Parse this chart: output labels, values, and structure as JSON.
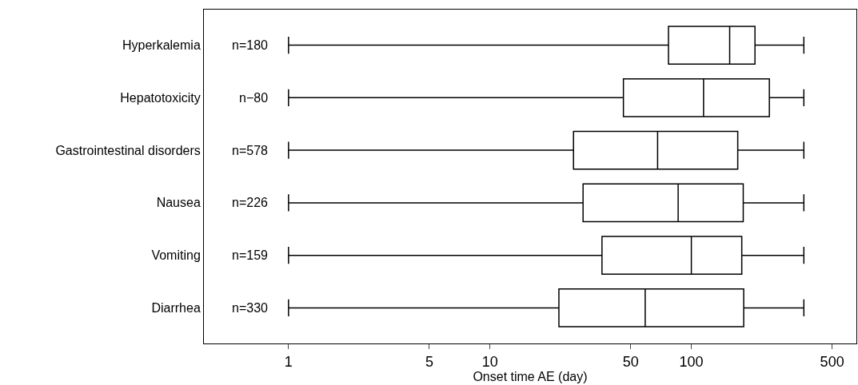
{
  "chart_data": {
    "type": "box",
    "xlabel": "Onset time AE (day)",
    "categories": [
      "Hyperkalemia",
      "Hepatotoxicity",
      "Gastrointestinal disorders",
      "Nausea",
      "Vomiting",
      "Diarrhea"
    ],
    "boxes": [
      {
        "low": 1,
        "q1": 77,
        "median": 155,
        "q3": 207,
        "high": 362
      },
      {
        "low": 1,
        "q1": 46,
        "median": 115,
        "q3": 244,
        "high": 362
      },
      {
        "low": 1,
        "q1": 26,
        "median": 68,
        "q3": 170,
        "high": 362
      },
      {
        "low": 1,
        "q1": 29,
        "median": 86,
        "q3": 181,
        "high": 362
      },
      {
        "low": 1,
        "q1": 36,
        "median": 100,
        "q3": 178,
        "high": 362
      },
      {
        "low": 1,
        "q1": 22,
        "median": 59,
        "q3": 182,
        "high": 362
      }
    ],
    "color": "#000000",
    "orientation": "horizontal",
    "log": "x",
    "xlim": [
      0.38,
      660
    ],
    "xticks": [
      1,
      5,
      10,
      50,
      100,
      500
    ],
    "annotations": [
      "n=180",
      "n−80",
      "n=578",
      "n=226",
      "n=159",
      "n=330"
    ]
  }
}
